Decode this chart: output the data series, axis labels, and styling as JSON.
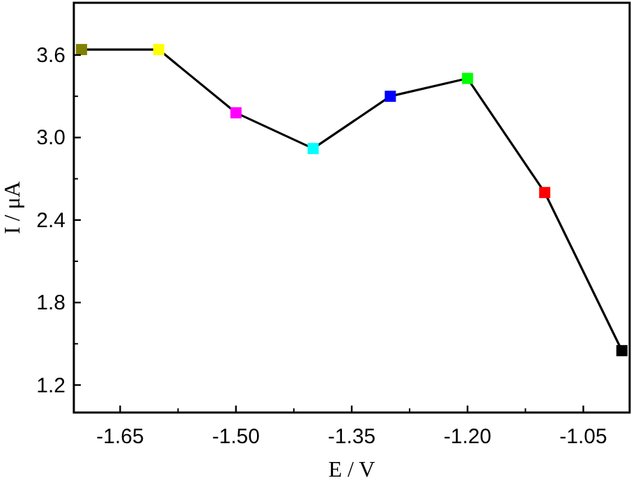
{
  "chart_data": {
    "type": "line",
    "xlabel": "E / V",
    "ylabel": "I / μA",
    "x": [
      -1.7,
      -1.6,
      -1.5,
      -1.4,
      -1.3,
      -1.2,
      -1.1,
      -1.0
    ],
    "series": [
      {
        "color": "#000000",
        "colors": [
          "#808000",
          "#ffff00",
          "#ff00ff",
          "#00ffff",
          "#0000ff",
          "#00ff00",
          "#ff0000",
          "#000000"
        ],
        "values": [
          3.64,
          3.64,
          3.18,
          2.92,
          3.3,
          3.43,
          2.6,
          1.45
        ]
      }
    ],
    "xlim": [
      -1.71,
      -0.99
    ],
    "xticks": [
      {
        "value": -1.65,
        "label": "-1.65"
      },
      {
        "value": -1.5,
        "label": "-1.50"
      },
      {
        "value": -1.35,
        "label": "-1.35"
      },
      {
        "value": -1.2,
        "label": "-1.20"
      },
      {
        "value": -1.05,
        "label": "-1.05"
      }
    ],
    "ylim": [
      1.0,
      3.98
    ],
    "yticks": [
      1.2,
      1.8,
      2.4,
      {
        "value": 3.0,
        "label": "3.0"
      },
      3.6
    ],
    "marker": "square",
    "line_style": "solid",
    "grid": false
  }
}
